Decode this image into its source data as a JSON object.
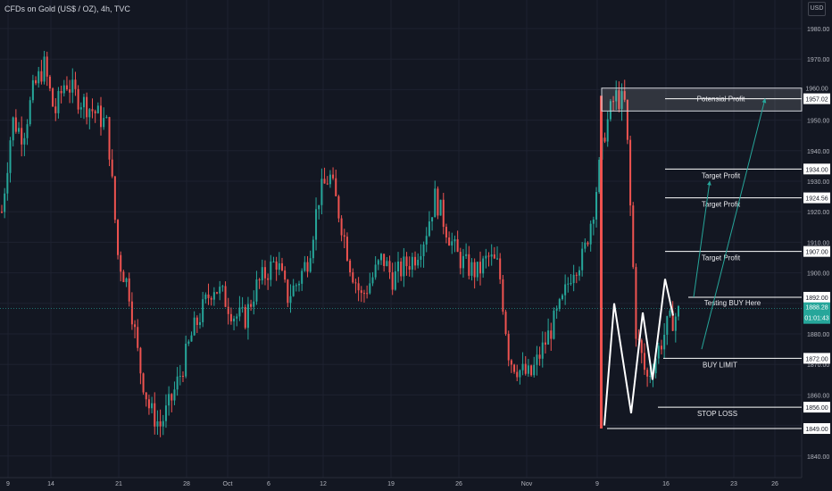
{
  "header": {
    "title": "CFDs on Gold (US$ / OZ), 4h, TVC"
  },
  "toolbar": {
    "currency": "USD"
  },
  "colors": {
    "background": "#131722",
    "up": "#26a69a",
    "down": "#ef5350",
    "grid": "#1e2230",
    "axis_text": "#b2b5be",
    "line": "#ffffff"
  },
  "chart_data": {
    "type": "candlestick",
    "title": "CFDs on Gold (US$ / OZ), 4h, TVC",
    "ylim": [
      1837,
      1992
    ],
    "y_ticks": [
      1840,
      1850,
      1860,
      1870,
      1880,
      1890,
      1900,
      1910,
      1920,
      1930,
      1940,
      1950,
      1960,
      1970,
      1980
    ],
    "x_ticks": [
      "9",
      "14",
      "21",
      "28",
      "Oct",
      "6",
      "12",
      "19",
      "26",
      "Nov",
      "9",
      "16",
      "23",
      "26"
    ],
    "last_price": "1888.28",
    "countdown": "01:01:43",
    "price_path": [
      1920,
      1950,
      1945,
      1960,
      1968,
      1952,
      1963,
      1958,
      1955,
      1952,
      1948,
      1905,
      1895,
      1870,
      1855,
      1850,
      1858,
      1868,
      1880,
      1888,
      1896,
      1892,
      1886,
      1885,
      1895,
      1900,
      1904,
      1892,
      1897,
      1905,
      1925,
      1932,
      1918,
      1902,
      1892,
      1898,
      1905,
      1898,
      1902,
      1905,
      1912,
      1925,
      1915,
      1906,
      1902,
      1900,
      1905,
      1902,
      1872,
      1868,
      1866,
      1874,
      1882,
      1890,
      1902,
      1905,
      1922,
      1946,
      1958,
      1955,
      1880,
      1865,
      1874,
      1883,
      1887
    ],
    "levels": [
      {
        "label": "Potensial Profit",
        "price": 1957.02,
        "price_label": "1957.02"
      },
      {
        "label": "Target Profit",
        "price": 1934.0,
        "price_label": "1934.00"
      },
      {
        "label": "Target Profit",
        "price": 1924.56,
        "price_label": "1924.56"
      },
      {
        "label": "Target Profit",
        "price": 1907.0,
        "price_label": "1907.00"
      },
      {
        "label": "Testing BUY Here",
        "price": 1892.0,
        "price_label": "1892.00"
      },
      {
        "label": "BUY LIMIT",
        "price": 1872.0,
        "price_label": "1872.00"
      },
      {
        "label": "STOP LOSS",
        "price": 1856.0,
        "price_label": "1856.00"
      },
      {
        "label": "",
        "price": 1849.0,
        "price_label": "1849.00"
      }
    ],
    "zone": {
      "from": 1953,
      "to": 1960.5,
      "label": "1960.00"
    },
    "zigzag_prices": [
      1850,
      1890,
      1854,
      1887,
      1865,
      1898,
      1886
    ]
  }
}
